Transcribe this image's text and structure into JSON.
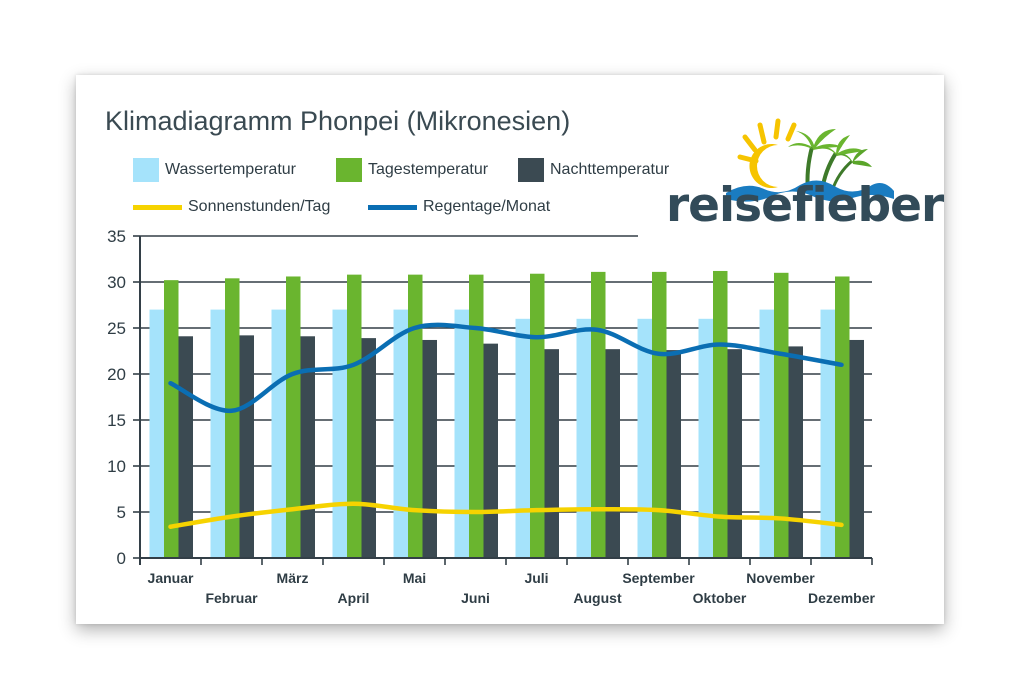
{
  "chart_data": {
    "type": "bar",
    "title": "Klimadiagramm Phonpei (Mikronesien)",
    "xlabel": "",
    "ylabel": "",
    "ylim": [
      0,
      35
    ],
    "yticks": [
      0,
      5,
      10,
      15,
      20,
      25,
      30,
      35
    ],
    "categories": [
      "Januar",
      "Februar",
      "März",
      "April",
      "Mai",
      "Juni",
      "Juli",
      "August",
      "September",
      "Oktober",
      "November",
      "Dezember"
    ],
    "series": [
      {
        "name": "Wassertemperatur",
        "kind": "bar",
        "color": "#a5e3fb",
        "values": [
          27,
          27,
          27,
          27,
          27,
          27,
          26,
          26,
          26,
          26,
          27,
          27
        ]
      },
      {
        "name": "Tagestemperatur",
        "kind": "bar",
        "color": "#6ab52f",
        "values": [
          30.2,
          30.4,
          30.6,
          30.8,
          30.8,
          30.8,
          30.9,
          31.1,
          31.1,
          31.2,
          31.0,
          30.6
        ]
      },
      {
        "name": "Nachttemperatur",
        "kind": "bar",
        "color": "#3b4a52",
        "values": [
          24.1,
          24.2,
          24.1,
          23.9,
          23.7,
          23.3,
          22.7,
          22.7,
          22.6,
          22.7,
          23.0,
          23.7
        ]
      },
      {
        "name": "Sonnenstunden/Tag",
        "kind": "line",
        "color": "#f6d300",
        "values": [
          3.4,
          4.5,
          5.3,
          5.9,
          5.2,
          5.0,
          5.2,
          5.3,
          5.2,
          4.5,
          4.3,
          3.6
        ]
      },
      {
        "name": "Regentage/Monat",
        "kind": "line",
        "color": "#0a6eb3",
        "values": [
          19,
          16,
          20,
          21,
          25,
          25,
          24,
          24.8,
          22.2,
          23.2,
          22.2,
          21
        ]
      }
    ],
    "grid": true,
    "legend": "top-left"
  },
  "logo": {
    "text": "reisefieber",
    "colors": {
      "text": "#324b59",
      "sun": "#f6c400",
      "palm": "#6ab52f",
      "wave": "#1a7cc1"
    }
  }
}
